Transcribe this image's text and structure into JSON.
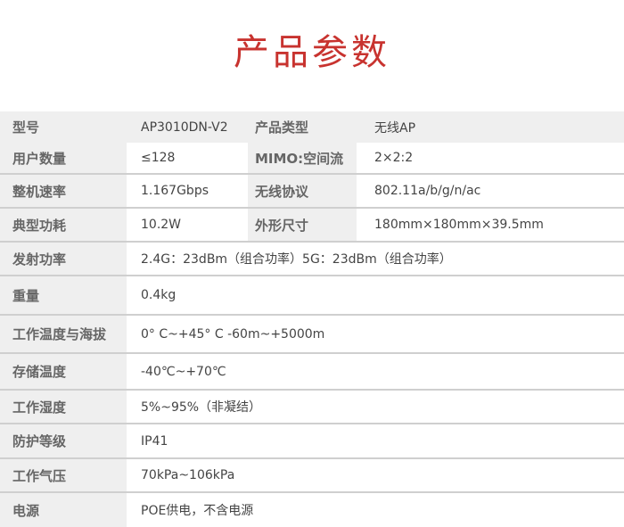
{
  "title": "产品参数",
  "rows": [
    {
      "label": "型号",
      "value": "AP3010DN-V2",
      "label2": "产品类型",
      "value2": "无线AP"
    },
    {
      "label": "用户数量",
      "value": "≤128",
      "label2": "MIMO:空间流",
      "value2": "2×2:2"
    },
    {
      "label": "整机速率",
      "value": "1.167Gbps",
      "label2": "无线协议",
      "value2": "802.11a/b/g/n/ac"
    },
    {
      "label": "典型功耗",
      "value": "10.2W",
      "label2": "外形尺寸",
      "value2": "180mm×180mm×39.5mm"
    },
    {
      "label": "发射功率",
      "value": "2.4G：23dBm（组合功率）5G：23dBm（组合功率）"
    },
    {
      "label": "重量",
      "value": "0.4kg"
    },
    {
      "label": "工作温度与海拔",
      "value": "0° C~+45° C  -60m~+5000m"
    },
    {
      "label": "存储温度",
      "value": "-40℃~+70℃"
    },
    {
      "label": "工作湿度",
      "value": "5%~95%（非凝结）"
    },
    {
      "label": "防护等级",
      "value": "IP41"
    },
    {
      "label": "工作气压",
      "value": "70kPa~106kPa"
    },
    {
      "label": "电源",
      "value": "POE供电，不含电源"
    }
  ]
}
